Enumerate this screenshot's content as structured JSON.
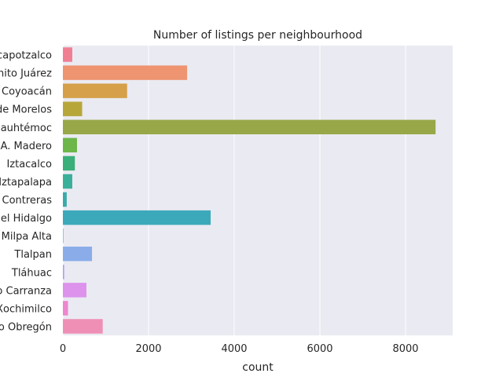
{
  "chart_data": {
    "type": "bar",
    "orientation": "horizontal",
    "title": "Number of listings per neighbourhood",
    "xlabel": "count",
    "ylabel": "",
    "xlim": [
      0,
      9100
    ],
    "xticks": [
      0,
      2000,
      4000,
      6000,
      8000
    ],
    "grid": true,
    "categories": [
      "Azcapotzalco",
      "Benito Juárez",
      "Coyoacán",
      "Cuajimalpa de Morelos",
      "Cuauhtémoc",
      "Gustavo A. Madero",
      "Iztacalco",
      "Iztapalapa",
      "La Magdalena Contreras",
      "Miguel Hidalgo",
      "Milpa Alta",
      "Tlalpan",
      "Tláhuac",
      "Venustiano Carranza",
      "Xochimilco",
      "Álvaro Obregón"
    ],
    "values": [
      220,
      2900,
      1500,
      450,
      8700,
      330,
      280,
      220,
      90,
      3450,
      10,
      680,
      30,
      550,
      120,
      930
    ],
    "colors": [
      "#f07f93",
      "#ee9471",
      "#d5a049",
      "#b7a73b",
      "#98a848",
      "#6cb64a",
      "#3aaf79",
      "#3ab09b",
      "#3aaaaa",
      "#3ca9ba",
      "#45a9d6",
      "#8aade9",
      "#b39bef",
      "#dd92ec",
      "#ee86d0",
      "#ef8fb6"
    ]
  }
}
